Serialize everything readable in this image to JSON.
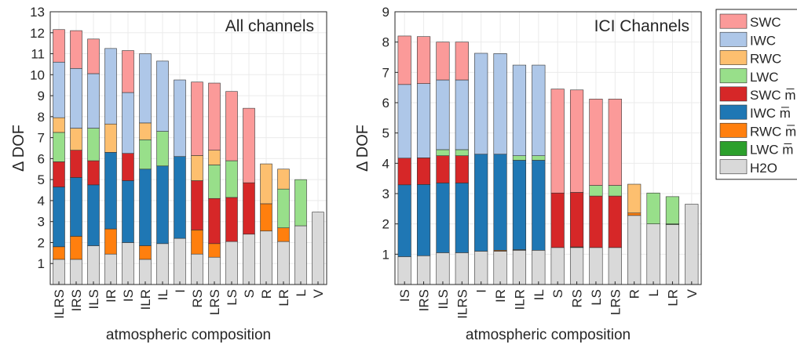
{
  "legend": {
    "entries": [
      {
        "key": "swc",
        "label": "SWC",
        "color": "#fb9a99"
      },
      {
        "key": "iwc",
        "label": "IWC",
        "color": "#aec7e8"
      },
      {
        "key": "rwc",
        "label": "RWC",
        "color": "#fdbf6f"
      },
      {
        "key": "lwc",
        "label": "LWC",
        "color": "#98df8a"
      },
      {
        "key": "swc_m",
        "label": "SWC m̅",
        "color": "#d62728"
      },
      {
        "key": "iwc_m",
        "label": "IWC m̅",
        "color": "#1f77b4"
      },
      {
        "key": "rwc_m",
        "label": "RWC m̅",
        "color": "#ff7f0e"
      },
      {
        "key": "lwc_m",
        "label": "LWC m̅",
        "color": "#2ca02c"
      },
      {
        "key": "h2o",
        "label": "H2O",
        "color": "#d9d9d9"
      }
    ]
  },
  "chart_data": [
    {
      "type": "bar",
      "stacked": true,
      "title": "All channels",
      "xlabel": "atmospheric composition",
      "ylabel": "Δ DOF",
      "ylim": [
        0,
        13
      ],
      "yticks": [
        1,
        2,
        3,
        4,
        5,
        6,
        7,
        8,
        9,
        10,
        11,
        12,
        13
      ],
      "grid": true,
      "categories": [
        "ILRS",
        "IRS",
        "ILS",
        "IR",
        "IS",
        "ILR",
        "IL",
        "I",
        "RS",
        "LRS",
        "LS",
        "S",
        "R",
        "LR",
        "L",
        "V"
      ],
      "series": [
        {
          "key": "h2o",
          "values": [
            1.2,
            1.2,
            1.85,
            1.45,
            2.0,
            1.2,
            1.95,
            2.2,
            1.45,
            1.3,
            2.05,
            2.4,
            2.55,
            2.05,
            2.8,
            3.45
          ]
        },
        {
          "key": "lwc_m",
          "values": [
            0,
            0,
            0,
            0,
            0,
            0,
            0,
            0,
            0,
            0,
            0,
            0,
            0,
            0,
            0,
            0
          ]
        },
        {
          "key": "rwc_m",
          "values": [
            0.6,
            1.1,
            0,
            1.2,
            0,
            0.65,
            0,
            0,
            1.15,
            0.65,
            0,
            0,
            1.3,
            0.65,
            0,
            0
          ]
        },
        {
          "key": "iwc_m",
          "values": [
            2.85,
            2.8,
            2.9,
            3.65,
            2.95,
            3.65,
            3.7,
            3.9,
            0,
            0,
            0,
            0,
            0,
            0,
            0,
            0
          ]
        },
        {
          "key": "swc_m",
          "values": [
            1.2,
            1.3,
            1.15,
            0,
            1.3,
            0,
            0,
            0,
            2.35,
            2.15,
            2.1,
            2.45,
            0,
            0,
            0,
            0
          ]
        },
        {
          "key": "lwc",
          "values": [
            1.4,
            0,
            1.55,
            0,
            0,
            1.4,
            1.65,
            0,
            0,
            1.6,
            1.75,
            0,
            0,
            1.85,
            2.2,
            0
          ]
        },
        {
          "key": "rwc",
          "values": [
            0.7,
            1.05,
            0,
            1.35,
            0,
            0.8,
            0,
            0,
            1.2,
            0.7,
            0,
            0,
            1.9,
            0.95,
            0,
            0
          ]
        },
        {
          "key": "iwc",
          "values": [
            2.65,
            2.85,
            2.6,
            3.6,
            2.9,
            3.3,
            3.35,
            3.65,
            0,
            0,
            0,
            0,
            0,
            0,
            0,
            0
          ]
        },
        {
          "key": "swc",
          "values": [
            1.55,
            1.8,
            1.65,
            0,
            2.0,
            0,
            0,
            0,
            3.5,
            3.2,
            3.3,
            3.55,
            0,
            0,
            0,
            0
          ]
        }
      ]
    },
    {
      "type": "bar",
      "stacked": true,
      "title": "ICI Channels",
      "xlabel": "atmospheric composition",
      "ylabel": "Δ DOF",
      "ylim": [
        0,
        9
      ],
      "yticks": [
        1,
        2,
        3,
        4,
        5,
        6,
        7,
        8,
        9
      ],
      "grid": true,
      "categories": [
        "IS",
        "IRS",
        "ILS",
        "ILRS",
        "I",
        "IR",
        "ILR",
        "IL",
        "S",
        "RS",
        "LS",
        "LRS",
        "R",
        "L",
        "LR",
        "V"
      ],
      "series": [
        {
          "key": "h2o",
          "values": [
            0.92,
            0.95,
            1.05,
            1.05,
            1.1,
            1.1,
            1.13,
            1.13,
            1.22,
            1.22,
            1.22,
            1.22,
            2.28,
            2.0,
            1.98,
            2.65
          ]
        },
        {
          "key": "lwc_m",
          "values": [
            0,
            0,
            0,
            0,
            0,
            0,
            0,
            0,
            0,
            0,
            0,
            0,
            0,
            0,
            0.02,
            0
          ]
        },
        {
          "key": "rwc_m",
          "values": [
            0,
            0.0,
            0,
            0,
            0,
            0.03,
            0.02,
            0,
            0,
            0.02,
            0,
            0,
            0.08,
            0,
            0,
            0
          ]
        },
        {
          "key": "iwc_m",
          "values": [
            2.37,
            2.35,
            2.3,
            2.3,
            3.2,
            3.17,
            2.95,
            2.97,
            0,
            0,
            0,
            0,
            0,
            0,
            0,
            0
          ]
        },
        {
          "key": "swc_m",
          "values": [
            0.88,
            0.88,
            0.9,
            0.9,
            0,
            0,
            0,
            0,
            1.8,
            1.8,
            1.7,
            1.7,
            0,
            0,
            0,
            0
          ]
        },
        {
          "key": "lwc",
          "values": [
            0,
            0,
            0.2,
            0.2,
            0,
            0,
            0.15,
            0.15,
            0,
            0,
            0.35,
            0.35,
            0,
            1.02,
            0.9,
            0
          ]
        },
        {
          "key": "rwc",
          "values": [
            0,
            0,
            0,
            0,
            0,
            0,
            0,
            0,
            0,
            0,
            0,
            0,
            0.95,
            0,
            0,
            0
          ]
        },
        {
          "key": "iwc",
          "values": [
            2.43,
            2.45,
            2.3,
            2.3,
            3.33,
            3.32,
            2.99,
            2.99,
            0,
            0,
            0,
            0,
            0,
            0,
            0,
            0
          ]
        },
        {
          "key": "swc",
          "values": [
            1.6,
            1.55,
            1.25,
            1.25,
            0,
            0,
            0,
            0,
            3.43,
            3.38,
            2.85,
            2.85,
            0,
            0,
            0,
            0
          ]
        }
      ]
    }
  ]
}
